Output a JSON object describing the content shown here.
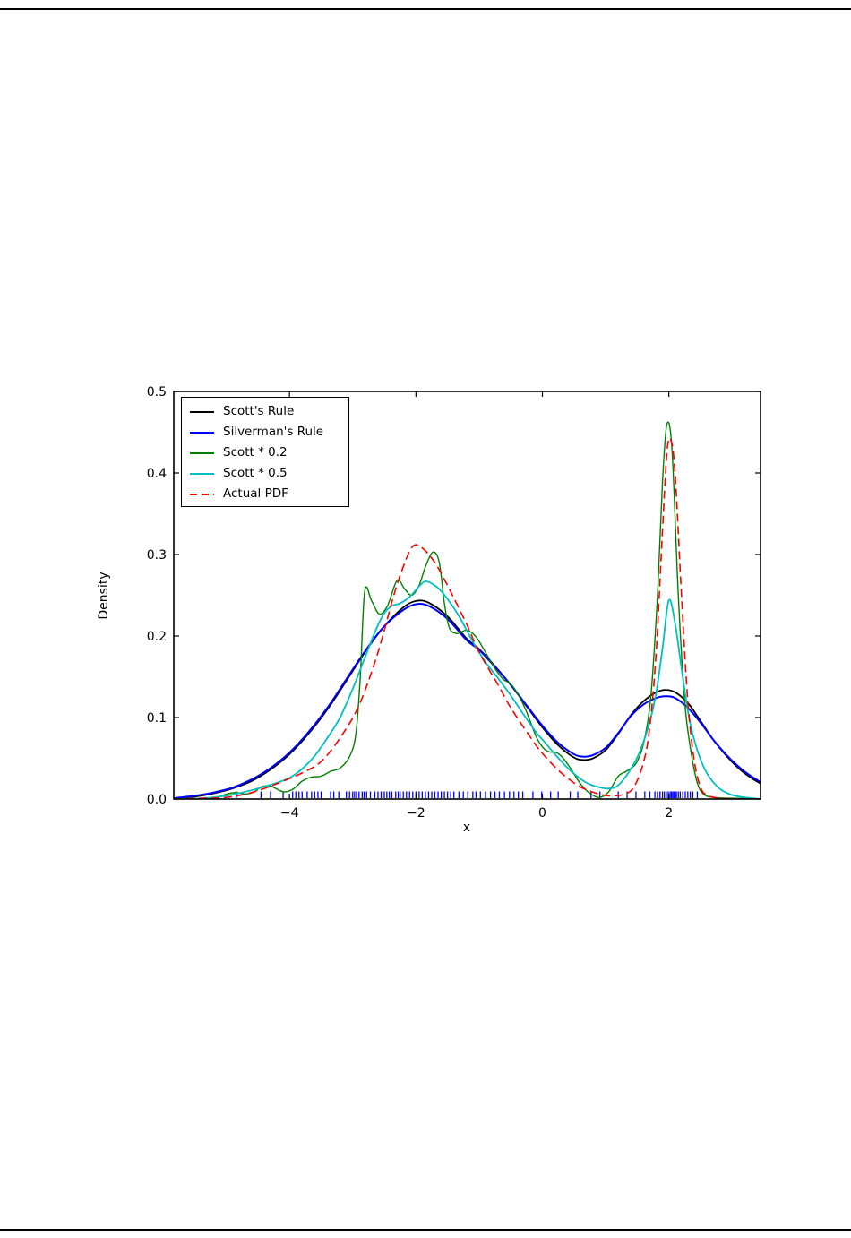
{
  "page": {
    "background": "#ffffff",
    "top_rule_color": "#000000",
    "bottom_rule_color": "#000000"
  },
  "chart_data": {
    "type": "line",
    "xlabel": "x",
    "ylabel": "Density",
    "xlim": [
      -5.83,
      3.45
    ],
    "ylim": [
      0,
      0.5
    ],
    "xticks": [
      -4,
      -2,
      0,
      2
    ],
    "xtick_labels": [
      "−4",
      "−2",
      "0",
      "2"
    ],
    "yticks": [
      0,
      0.1,
      0.2,
      0.3,
      0.4,
      0.5
    ],
    "ytick_labels": [
      "0.0",
      "0.1",
      "0.2",
      "0.3",
      "0.4",
      "0.5"
    ],
    "grid": false,
    "legend": {
      "position": "upper left"
    },
    "series": [
      {
        "name": "Scott's Rule",
        "color": "#000000",
        "width": 1.8,
        "dash": null,
        "points": [
          [
            -5.83,
            0.001
          ],
          [
            -5.5,
            0.003
          ],
          [
            -5.2,
            0.007
          ],
          [
            -4.9,
            0.013
          ],
          [
            -4.6,
            0.022
          ],
          [
            -4.3,
            0.036
          ],
          [
            -4.0,
            0.055
          ],
          [
            -3.7,
            0.08
          ],
          [
            -3.4,
            0.11
          ],
          [
            -3.1,
            0.145
          ],
          [
            -2.8,
            0.181
          ],
          [
            -2.5,
            0.212
          ],
          [
            -2.2,
            0.235
          ],
          [
            -2.0,
            0.243
          ],
          [
            -1.8,
            0.241
          ],
          [
            -1.5,
            0.224
          ],
          [
            -1.2,
            0.197
          ],
          [
            -1.0,
            0.184
          ],
          [
            -0.75,
            0.163
          ],
          [
            -0.5,
            0.14
          ],
          [
            -0.25,
            0.114
          ],
          [
            0,
            0.088
          ],
          [
            0.25,
            0.066
          ],
          [
            0.5,
            0.051
          ],
          [
            0.65,
            0.048
          ],
          [
            0.8,
            0.05
          ],
          [
            1.0,
            0.06
          ],
          [
            1.2,
            0.08
          ],
          [
            1.4,
            0.103
          ],
          [
            1.6,
            0.12
          ],
          [
            1.8,
            0.131
          ],
          [
            1.95,
            0.134
          ],
          [
            2.1,
            0.131
          ],
          [
            2.3,
            0.118
          ],
          [
            2.5,
            0.096
          ],
          [
            2.7,
            0.073
          ],
          [
            2.9,
            0.054
          ],
          [
            3.1,
            0.038
          ],
          [
            3.3,
            0.026
          ],
          [
            3.45,
            0.019
          ]
        ]
      },
      {
        "name": "Silverman's Rule",
        "color": "#0000ff",
        "width": 2,
        "dash": null,
        "points": [
          [
            -5.83,
            0.001
          ],
          [
            -5.5,
            0.004
          ],
          [
            -5.2,
            0.008
          ],
          [
            -4.9,
            0.014
          ],
          [
            -4.6,
            0.024
          ],
          [
            -4.3,
            0.038
          ],
          [
            -4.0,
            0.057
          ],
          [
            -3.7,
            0.082
          ],
          [
            -3.4,
            0.112
          ],
          [
            -3.1,
            0.147
          ],
          [
            -2.8,
            0.182
          ],
          [
            -2.5,
            0.212
          ],
          [
            -2.2,
            0.232
          ],
          [
            -2.0,
            0.239
          ],
          [
            -1.8,
            0.237
          ],
          [
            -1.5,
            0.221
          ],
          [
            -1.2,
            0.195
          ],
          [
            -1.0,
            0.183
          ],
          [
            -0.75,
            0.162
          ],
          [
            -0.5,
            0.14
          ],
          [
            -0.25,
            0.115
          ],
          [
            0,
            0.09
          ],
          [
            0.25,
            0.069
          ],
          [
            0.5,
            0.055
          ],
          [
            0.65,
            0.052
          ],
          [
            0.8,
            0.054
          ],
          [
            1.0,
            0.063
          ],
          [
            1.2,
            0.081
          ],
          [
            1.4,
            0.102
          ],
          [
            1.6,
            0.116
          ],
          [
            1.8,
            0.124
          ],
          [
            1.95,
            0.126
          ],
          [
            2.1,
            0.124
          ],
          [
            2.3,
            0.112
          ],
          [
            2.5,
            0.094
          ],
          [
            2.7,
            0.073
          ],
          [
            2.9,
            0.055
          ],
          [
            3.1,
            0.04
          ],
          [
            3.3,
            0.028
          ],
          [
            3.45,
            0.021
          ]
        ]
      },
      {
        "name": "Scott * 0.2",
        "color": "#008000",
        "width": 1.4,
        "dash": null,
        "points": [
          [
            -5.83,
            0
          ],
          [
            -5.4,
            0
          ],
          [
            -5.15,
            0.002
          ],
          [
            -5.0,
            0.006
          ],
          [
            -4.85,
            0.008
          ],
          [
            -4.7,
            0.006
          ],
          [
            -4.55,
            0.009
          ],
          [
            -4.45,
            0.015
          ],
          [
            -4.3,
            0.016
          ],
          [
            -4.1,
            0.009
          ],
          [
            -3.95,
            0.012
          ],
          [
            -3.8,
            0.022
          ],
          [
            -3.65,
            0.027
          ],
          [
            -3.5,
            0.028
          ],
          [
            -3.35,
            0.034
          ],
          [
            -3.2,
            0.038
          ],
          [
            -3.05,
            0.052
          ],
          [
            -2.95,
            0.08
          ],
          [
            -2.88,
            0.15
          ],
          [
            -2.81,
            0.255
          ],
          [
            -2.7,
            0.243
          ],
          [
            -2.58,
            0.227
          ],
          [
            -2.45,
            0.237
          ],
          [
            -2.3,
            0.268
          ],
          [
            -2.18,
            0.258
          ],
          [
            -2.07,
            0.25
          ],
          [
            -1.95,
            0.262
          ],
          [
            -1.85,
            0.285
          ],
          [
            -1.73,
            0.303
          ],
          [
            -1.63,
            0.29
          ],
          [
            -1.55,
            0.24
          ],
          [
            -1.47,
            0.21
          ],
          [
            -1.35,
            0.203
          ],
          [
            -1.2,
            0.207
          ],
          [
            -1.05,
            0.199
          ],
          [
            -0.9,
            0.18
          ],
          [
            -0.75,
            0.16
          ],
          [
            -0.62,
            0.147
          ],
          [
            -0.5,
            0.141
          ],
          [
            -0.38,
            0.128
          ],
          [
            -0.25,
            0.107
          ],
          [
            -0.1,
            0.077
          ],
          [
            0,
            0.064
          ],
          [
            0.1,
            0.058
          ],
          [
            0.22,
            0.057
          ],
          [
            0.32,
            0.051
          ],
          [
            0.45,
            0.037
          ],
          [
            0.6,
            0.019
          ],
          [
            0.75,
            0.007
          ],
          [
            0.9,
            0.002
          ],
          [
            1.05,
            0.009
          ],
          [
            1.2,
            0.028
          ],
          [
            1.35,
            0.035
          ],
          [
            1.5,
            0.046
          ],
          [
            1.62,
            0.075
          ],
          [
            1.72,
            0.13
          ],
          [
            1.82,
            0.25
          ],
          [
            1.9,
            0.39
          ],
          [
            1.97,
            0.46
          ],
          [
            2.05,
            0.428
          ],
          [
            2.15,
            0.25
          ],
          [
            2.25,
            0.12
          ],
          [
            2.35,
            0.058
          ],
          [
            2.45,
            0.02
          ],
          [
            2.55,
            0.006
          ],
          [
            2.7,
            0.002
          ],
          [
            3.0,
            0.001
          ],
          [
            3.45,
            0
          ]
        ]
      },
      {
        "name": "Scott * 0.5",
        "color": "#00bfbf",
        "width": 1.8,
        "dash": null,
        "points": [
          [
            -5.83,
            0
          ],
          [
            -5.4,
            0.001
          ],
          [
            -5.1,
            0.003
          ],
          [
            -4.8,
            0.007
          ],
          [
            -4.5,
            0.013
          ],
          [
            -4.2,
            0.02
          ],
          [
            -4.0,
            0.026
          ],
          [
            -3.8,
            0.037
          ],
          [
            -3.6,
            0.053
          ],
          [
            -3.4,
            0.075
          ],
          [
            -3.2,
            0.1
          ],
          [
            -3.0,
            0.135
          ],
          [
            -2.8,
            0.175
          ],
          [
            -2.62,
            0.21
          ],
          [
            -2.5,
            0.228
          ],
          [
            -2.38,
            0.237
          ],
          [
            -2.25,
            0.24
          ],
          [
            -2.1,
            0.248
          ],
          [
            -1.95,
            0.261
          ],
          [
            -1.85,
            0.267
          ],
          [
            -1.72,
            0.263
          ],
          [
            -1.6,
            0.255
          ],
          [
            -1.45,
            0.24
          ],
          [
            -1.3,
            0.222
          ],
          [
            -1.1,
            0.193
          ],
          [
            -0.9,
            0.168
          ],
          [
            -0.7,
            0.148
          ],
          [
            -0.5,
            0.127
          ],
          [
            -0.3,
            0.104
          ],
          [
            -0.1,
            0.082
          ],
          [
            0,
            0.073
          ],
          [
            0.2,
            0.055
          ],
          [
            0.4,
            0.038
          ],
          [
            0.6,
            0.025
          ],
          [
            0.75,
            0.018
          ],
          [
            0.9,
            0.0145
          ],
          [
            1.05,
            0.013
          ],
          [
            1.2,
            0.017
          ],
          [
            1.4,
            0.037
          ],
          [
            1.55,
            0.06
          ],
          [
            1.7,
            0.095
          ],
          [
            1.8,
            0.13
          ],
          [
            1.9,
            0.185
          ],
          [
            2.0,
            0.244
          ],
          [
            2.1,
            0.215
          ],
          [
            2.2,
            0.16
          ],
          [
            2.32,
            0.1
          ],
          [
            2.45,
            0.06
          ],
          [
            2.6,
            0.032
          ],
          [
            2.8,
            0.013
          ],
          [
            3.0,
            0.005
          ],
          [
            3.2,
            0.002
          ],
          [
            3.45,
            0
          ]
        ]
      },
      {
        "name": "Actual PDF",
        "color": "#ff0000",
        "width": 1.6,
        "dash": "9,5",
        "points": [
          [
            -5.83,
            0
          ],
          [
            -5.3,
            0.001
          ],
          [
            -5.0,
            0.002
          ],
          [
            -4.7,
            0.006
          ],
          [
            -4.4,
            0.013
          ],
          [
            -4.1,
            0.022
          ],
          [
            -3.8,
            0.032
          ],
          [
            -3.5,
            0.046
          ],
          [
            -3.2,
            0.075
          ],
          [
            -2.9,
            0.115
          ],
          [
            -2.6,
            0.18
          ],
          [
            -2.35,
            0.25
          ],
          [
            -2.2,
            0.285
          ],
          [
            -2.05,
            0.31
          ],
          [
            -1.9,
            0.308
          ],
          [
            -1.7,
            0.29
          ],
          [
            -1.5,
            0.262
          ],
          [
            -1.2,
            0.215
          ],
          [
            -1.0,
            0.18
          ],
          [
            -0.7,
            0.14
          ],
          [
            -0.5,
            0.112
          ],
          [
            -0.2,
            0.077
          ],
          [
            0,
            0.056
          ],
          [
            0.3,
            0.032
          ],
          [
            0.6,
            0.015
          ],
          [
            0.9,
            0.006
          ],
          [
            1.1,
            0.004
          ],
          [
            1.3,
            0.006
          ],
          [
            1.45,
            0.015
          ],
          [
            1.6,
            0.045
          ],
          [
            1.7,
            0.09
          ],
          [
            1.8,
            0.18
          ],
          [
            1.9,
            0.33
          ],
          [
            1.97,
            0.425
          ],
          [
            2.03,
            0.441
          ],
          [
            2.1,
            0.398
          ],
          [
            2.2,
            0.25
          ],
          [
            2.3,
            0.12
          ],
          [
            2.4,
            0.048
          ],
          [
            2.5,
            0.015
          ],
          [
            2.6,
            0.005
          ],
          [
            2.8,
            0.001
          ],
          [
            3.1,
            0
          ],
          [
            3.45,
            0
          ]
        ]
      }
    ],
    "rug": {
      "color": "#0000ff",
      "x": [
        -4.84,
        -4.45,
        -4.3,
        -4.1,
        -3.95,
        -3.9,
        -3.85,
        -3.8,
        -3.72,
        -3.65,
        -3.6,
        -3.55,
        -3.5,
        -3.35,
        -3.3,
        -3.22,
        -3.1,
        -3.05,
        -3.0,
        -2.97,
        -2.94,
        -2.9,
        -2.85,
        -2.82,
        -2.78,
        -2.72,
        -2.65,
        -2.6,
        -2.55,
        -2.5,
        -2.46,
        -2.42,
        -2.38,
        -2.32,
        -2.28,
        -2.25,
        -2.2,
        -2.15,
        -2.1,
        -2.05,
        -2.0,
        -1.95,
        -1.9,
        -1.85,
        -1.8,
        -1.75,
        -1.7,
        -1.65,
        -1.6,
        -1.55,
        -1.5,
        -1.45,
        -1.4,
        -1.32,
        -1.25,
        -1.18,
        -1.1,
        -1.05,
        -0.98,
        -0.9,
        -0.82,
        -0.75,
        -0.68,
        -0.6,
        -0.52,
        -0.45,
        -0.38,
        -0.31,
        -0.15,
        -0.01,
        0.13,
        0.25,
        0.44,
        0.56,
        0.77,
        0.91,
        1.2,
        1.34,
        1.48,
        1.62,
        1.7,
        1.78,
        1.82,
        1.86,
        1.9,
        1.93,
        1.96,
        1.99,
        2.02,
        2.04,
        2.06,
        2.08,
        2.1,
        2.12,
        2.15,
        2.18,
        2.22,
        2.26,
        2.3,
        2.34,
        2.38,
        2.45
      ]
    }
  }
}
